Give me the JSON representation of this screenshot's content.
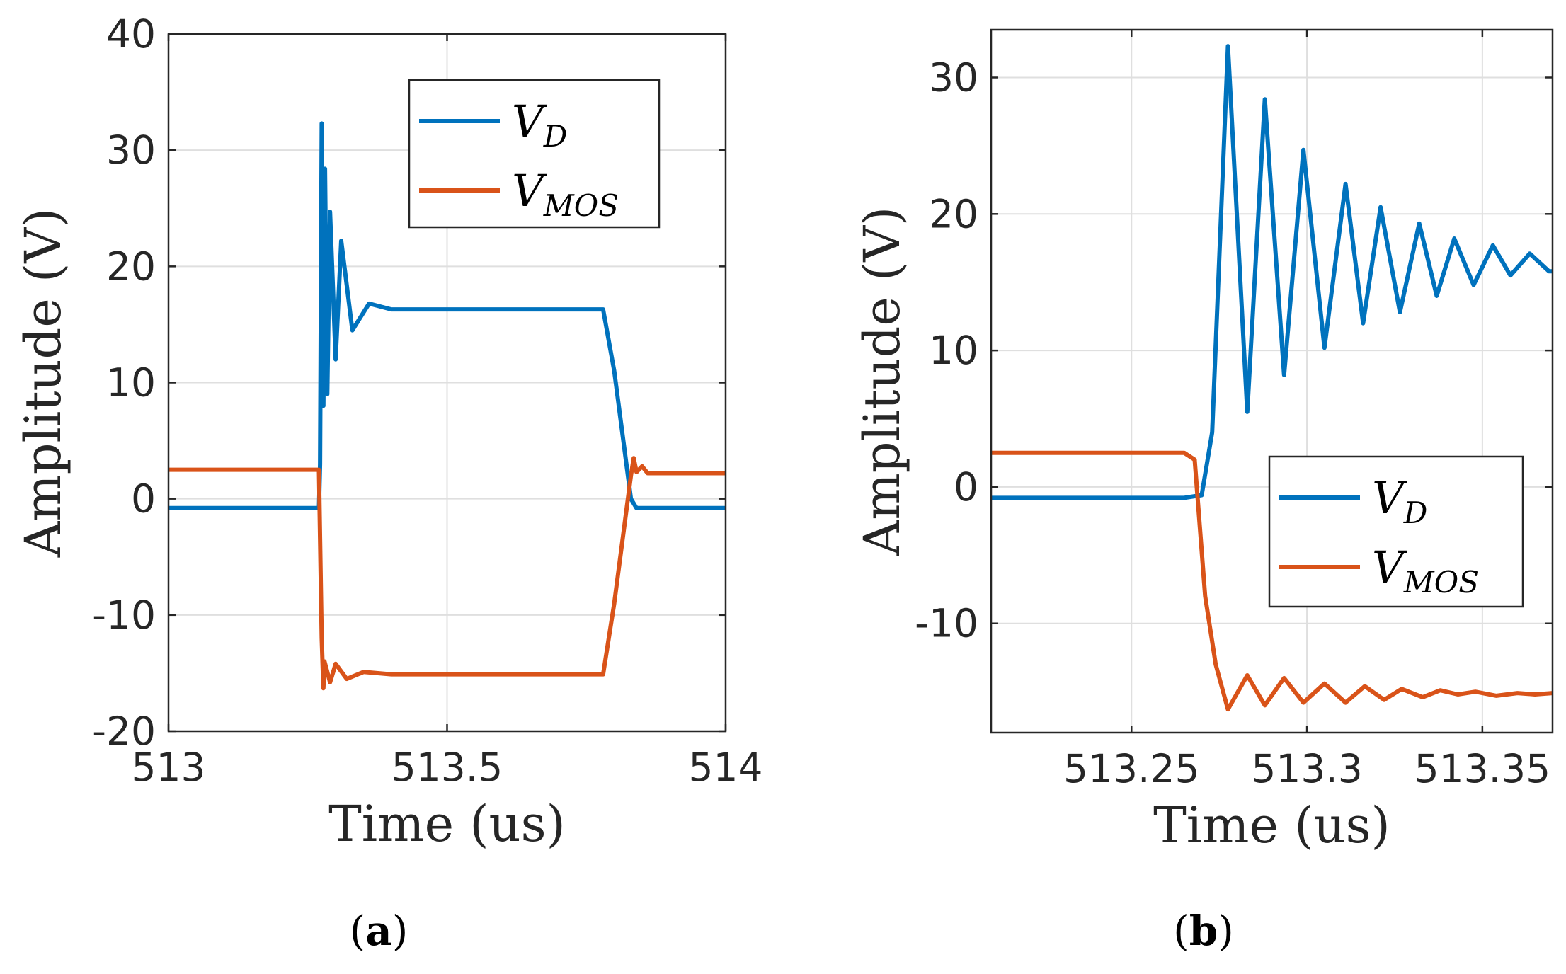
{
  "chart_data": [
    {
      "panel": "(a)",
      "type": "line",
      "xlabel": "Time (us)",
      "ylabel": "Amplitude (V)",
      "xlim": [
        513,
        514
      ],
      "ylim": [
        -20,
        40
      ],
      "xticks": [
        "513",
        "513.5",
        "514"
      ],
      "yticks": [
        "-20",
        "-10",
        "0",
        "10",
        "20",
        "30",
        "40"
      ],
      "grid": true,
      "legend_position": "top-right",
      "colors": {
        "V_D": "#0072BD",
        "V_MOS": "#D95319"
      },
      "series": [
        {
          "name": "V_D",
          "label_main": "V",
          "label_sub": "D",
          "x": [
            513.0,
            513.27,
            513.272,
            513.275,
            513.278,
            513.281,
            513.285,
            513.29,
            513.3,
            513.31,
            513.33,
            513.36,
            513.4,
            513.5,
            513.6,
            513.7,
            513.78,
            513.8,
            513.83,
            513.84,
            514.0
          ],
          "y": [
            -0.8,
            -0.8,
            3,
            32.3,
            8,
            28.4,
            9,
            24.7,
            12,
            22.2,
            14.5,
            16.8,
            16.3,
            16.3,
            16.3,
            16.3,
            16.3,
            11,
            0,
            -0.8,
            -0.8
          ]
        },
        {
          "name": "V_MOS",
          "label_main": "V",
          "label_sub": "MOS",
          "x": [
            513.0,
            513.27,
            513.275,
            513.278,
            513.28,
            513.29,
            513.3,
            513.32,
            513.35,
            513.4,
            513.5,
            513.6,
            513.7,
            513.78,
            513.8,
            513.83,
            513.835,
            513.84,
            513.85,
            513.86,
            514.0
          ],
          "y": [
            2.5,
            2.5,
            -12,
            -16.3,
            -14,
            -15.8,
            -14.2,
            -15.5,
            -14.9,
            -15.1,
            -15.1,
            -15.1,
            -15.1,
            -15.1,
            -9,
            2,
            3.5,
            2.3,
            2.8,
            2.2,
            2.2
          ]
        }
      ]
    },
    {
      "panel": "(b)",
      "type": "line",
      "xlabel": "Time (us)",
      "ylabel": "Amplitude (V)",
      "xlim": [
        513.21,
        513.37
      ],
      "ylim": [
        -18,
        33.5
      ],
      "xticks": [
        "513.25",
        "513.3",
        "513.35"
      ],
      "yticks": [
        "-10",
        "0",
        "10",
        "20",
        "30"
      ],
      "grid": true,
      "legend_position": "bottom-right",
      "colors": {
        "V_D": "#0072BD",
        "V_MOS": "#D95319"
      },
      "series": [
        {
          "name": "V_D",
          "label_main": "V",
          "label_sub": "D",
          "x": [
            513.21,
            513.265,
            513.27,
            513.273,
            513.2775,
            513.283,
            513.288,
            513.2935,
            513.299,
            513.305,
            513.311,
            513.316,
            513.321,
            513.3265,
            513.332,
            513.337,
            513.342,
            513.3475,
            513.353,
            513.358,
            513.3635,
            513.369,
            513.37
          ],
          "y": [
            -0.8,
            -0.8,
            -0.6,
            4,
            32.3,
            5.5,
            28.4,
            8.2,
            24.7,
            10.2,
            22.2,
            12,
            20.5,
            12.8,
            19.3,
            14,
            18.2,
            14.8,
            17.7,
            15.5,
            17.1,
            15.8,
            15.8
          ]
        },
        {
          "name": "V_MOS",
          "label_main": "V",
          "label_sub": "MOS",
          "x": [
            513.21,
            513.265,
            513.268,
            513.271,
            513.274,
            513.2775,
            513.283,
            513.288,
            513.2935,
            513.299,
            513.305,
            513.311,
            513.3165,
            513.322,
            513.327,
            513.333,
            513.338,
            513.343,
            513.348,
            513.354,
            513.36,
            513.365,
            513.37
          ],
          "y": [
            2.5,
            2.5,
            2.0,
            -8,
            -13,
            -16.3,
            -13.8,
            -16.0,
            -14.0,
            -15.8,
            -14.4,
            -15.8,
            -14.6,
            -15.6,
            -14.8,
            -15.4,
            -14.9,
            -15.2,
            -15.0,
            -15.3,
            -15.1,
            -15.2,
            -15.1
          ]
        }
      ]
    }
  ]
}
